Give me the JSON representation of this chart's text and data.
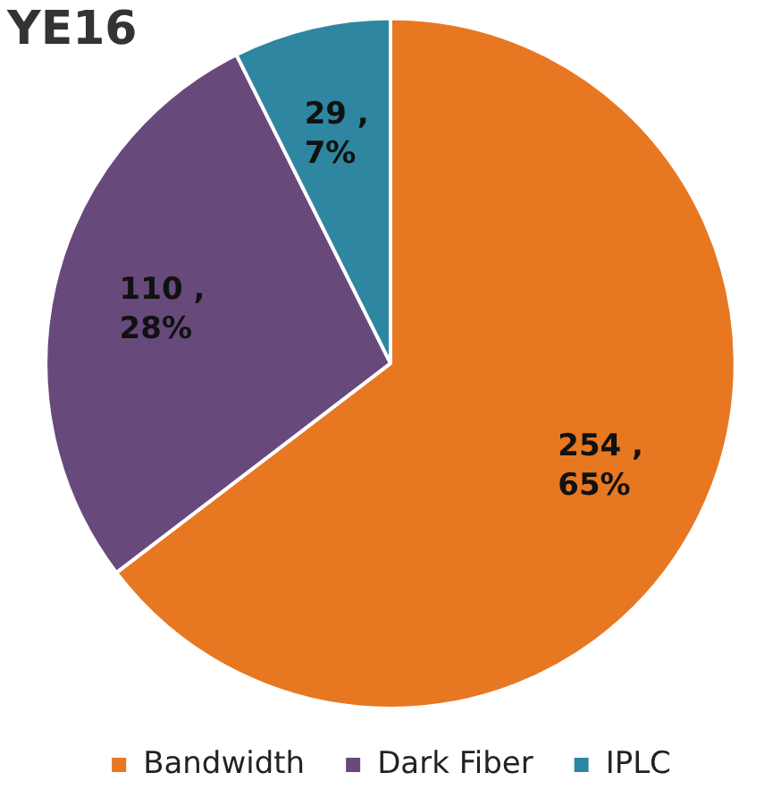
{
  "chart_data": {
    "type": "pie",
    "title": "YE16",
    "categories": [
      "Bandwidth",
      "Dark Fiber",
      "IPLC"
    ],
    "values": [
      254,
      110,
      29
    ],
    "colors": [
      "#e87722",
      "#68497c",
      "#2e86a0"
    ],
    "value_labels": [
      "254 ,\n65%",
      "110 ,\n28%",
      "29 ,\n7%"
    ],
    "legend": "bottom"
  }
}
